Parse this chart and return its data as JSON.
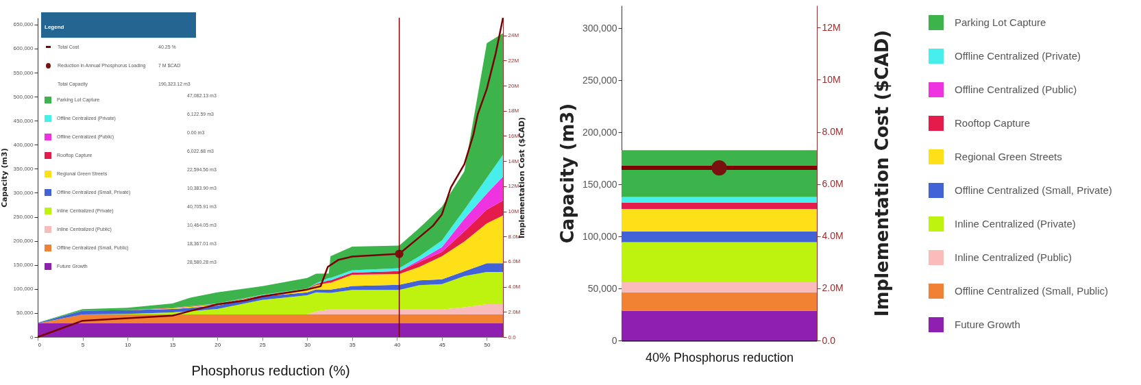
{
  "chart_data": [
    {
      "type": "area",
      "stacked": true,
      "legend": "top left",
      "legend_title": "Legend",
      "xlabel": "Phosphorus reduction (%)",
      "ylabel": "Capacity (m3)",
      "y2label": "Implementation Cost ($CAD)",
      "x": [
        0,
        5,
        10,
        15,
        17,
        20,
        25,
        30,
        31,
        32.4,
        32.6,
        35,
        40.25,
        42.5,
        45,
        47.5,
        50,
        51.8
      ],
      "xlim": [
        0,
        51.8
      ],
      "xticks": [
        0,
        5,
        10,
        15,
        20,
        25,
        30,
        35,
        40,
        45,
        50
      ],
      "ylim": [
        0,
        664000
      ],
      "yticks": [
        {
          "value": 0,
          "label": "0"
        },
        {
          "value": 50000,
          "label": "50,000"
        },
        {
          "value": 100000,
          "label": "100,000"
        },
        {
          "value": 150000,
          "label": "150,000"
        },
        {
          "value": 200000,
          "label": "200,000"
        },
        {
          "value": 250000,
          "label": "250,000"
        },
        {
          "value": 300000,
          "label": "300,000"
        },
        {
          "value": 350000,
          "label": "350,000"
        },
        {
          "value": 400000,
          "label": "400,000"
        },
        {
          "value": 450000,
          "label": "450,000"
        },
        {
          "value": 500000,
          "label": "500,000"
        },
        {
          "value": 550000,
          "label": "550,000"
        },
        {
          "value": 600000,
          "label": "600,000"
        },
        {
          "value": 650000,
          "label": "650,000"
        }
      ],
      "y2lim": [
        0,
        25400000
      ],
      "y2ticks": [
        {
          "value": 0,
          "label": "0.0"
        },
        {
          "value": 2000000,
          "label": "2.0M"
        },
        {
          "value": 4000000,
          "label": "4.0M"
        },
        {
          "value": 6000000,
          "label": "6.0M"
        },
        {
          "value": 8000000,
          "label": "8.0M"
        },
        {
          "value": 10000000,
          "label": "10M"
        },
        {
          "value": 12000000,
          "label": "12M"
        },
        {
          "value": 14000000,
          "label": "14M"
        },
        {
          "value": 16000000,
          "label": "16M"
        },
        {
          "value": 18000000,
          "label": "18M"
        },
        {
          "value": 20000000,
          "label": "20M"
        },
        {
          "value": 22000000,
          "label": "22M"
        },
        {
          "value": 24000000,
          "label": "24M"
        }
      ],
      "series": [
        {
          "name": "Future Growth",
          "color": "#8e1fb0",
          "values": [
            28580,
            28580,
            28580,
            28580,
            28580,
            28580,
            28580,
            28580,
            28580,
            28580,
            28580,
            28580,
            28580,
            28580,
            28580,
            28580,
            28580,
            28580
          ]
        },
        {
          "name": "Offline Centralized (Small, Public)",
          "color": "#f18233",
          "values": [
            0,
            18370,
            18370,
            18370,
            18370,
            18370,
            18370,
            18370,
            18370,
            18370,
            18370,
            18370,
            18370,
            18370,
            18370,
            18370,
            18370,
            18370
          ]
        },
        {
          "name": "Inline Centralized (Public)",
          "color": "#f9bcbb",
          "values": [
            0,
            0,
            0,
            0,
            0,
            0,
            0,
            0,
            6000,
            10460,
            10460,
            10460,
            10460,
            10460,
            10460,
            15000,
            21500,
            21500
          ]
        },
        {
          "name": "Inline Centralized (Private)",
          "color": "#bef30f",
          "values": [
            0,
            0,
            1000,
            4400,
            6800,
            11500,
            30500,
            40000,
            40000,
            34600,
            34600,
            40600,
            40710,
            50600,
            52600,
            65000,
            67000,
            67000
          ]
        },
        {
          "name": "Offline Centralized (Small, Private)",
          "color": "#4263d7",
          "values": [
            1000,
            8000,
            8000,
            7000,
            7000,
            7000,
            7000,
            6000,
            6000,
            6700,
            6700,
            8000,
            10380,
            10000,
            10000,
            10000,
            18000,
            18000
          ]
        },
        {
          "name": "Regional Green Streets",
          "color": "#fde018",
          "values": [
            0,
            0,
            0,
            1400,
            2200,
            2500,
            1500,
            5700,
            9000,
            14300,
            14300,
            23500,
            22590,
            28000,
            48000,
            62000,
            83000,
            99500
          ]
        },
        {
          "name": "Rooftop Capture",
          "color": "#e51b4b",
          "values": [
            0,
            0,
            0,
            1000,
            1000,
            1000,
            1000,
            1300,
            2000,
            5000,
            5000,
            4500,
            6020,
            10000,
            9000,
            21000,
            28500,
            31000
          ]
        },
        {
          "name": "Offline Centralized (Public)",
          "color": "#f033e0",
          "values": [
            0,
            0,
            0,
            0,
            0,
            0,
            0,
            0,
            0,
            0,
            0,
            0,
            0,
            4000,
            10000,
            26000,
            33500,
            50000
          ]
        },
        {
          "name": "Offline Centralized (Private)",
          "color": "#46eeec",
          "values": [
            0,
            0,
            0,
            200,
            600,
            1000,
            1000,
            1000,
            2000,
            5000,
            5000,
            5000,
            6120,
            8000,
            14000,
            19000,
            33000,
            45000
          ]
        },
        {
          "name": "Parking Lot Capture",
          "color": "#3cb44b",
          "values": [
            500,
            3000,
            5000,
            9000,
            17400,
            23000,
            18000,
            22000,
            20000,
            9000,
            45000,
            49000,
            47080,
            59000,
            70000,
            80000,
            280000,
            253000
          ]
        },
        {
          "name": "Total Cost",
          "type": "line",
          "axis": "y2",
          "color": "#7a0000",
          "x": [
            0,
            5,
            10,
            15,
            17,
            20,
            23,
            25,
            30,
            31.5,
            32.3,
            33.5,
            35,
            40.25,
            42.5,
            44,
            45,
            46,
            47.5,
            48.5,
            49,
            50,
            51,
            51.8
          ],
          "values": [
            0,
            1300000,
            1500000,
            1700000,
            2080000,
            2600000,
            2900000,
            3230000,
            3780000,
            4050000,
            5590000,
            6150000,
            6400000,
            6620000,
            7950000,
            8850000,
            9760000,
            11900000,
            13760000,
            16100000,
            17750000,
            19750000,
            22600000,
            25400000
          ]
        },
        {
          "name": "Reduction in Annual Phosphorus Loading",
          "type": "scatter",
          "axis": "y2",
          "color": "#7a1010",
          "x": [
            40.25
          ],
          "values": [
            6620000
          ]
        }
      ],
      "ref_lines": [
        {
          "axis": "x",
          "value": 40.25,
          "color": "#7a0000"
        }
      ],
      "annotations": [
        "40.25 %",
        "7 M $CAD",
        "Total Capacity",
        "190,323.12 m3",
        "47,082.13 m3",
        "6,122.59 m3",
        "0.00 m3",
        "6,022.68 m3",
        "22,594.56 m3",
        "10,383.90 m3",
        "40,705.91 m3",
        "10,464.05 m3",
        "18,367.01 m3",
        "28,580.28 m3"
      ]
    },
    {
      "type": "bar",
      "stacked": true,
      "legend": "right",
      "categories": [
        null
      ],
      "xlabel": "40% Phosphorus reduction",
      "ylabel": "Capacity (m3)",
      "y2label": "Implementation Cost ($CAD)",
      "ylim": [
        0,
        322000
      ],
      "yticks": [
        {
          "value": 0,
          "label": "0"
        },
        {
          "value": 50000,
          "label": "50,000"
        },
        {
          "value": 100000,
          "label": "100,000"
        },
        {
          "value": 150000,
          "label": "150,000"
        },
        {
          "value": 200000,
          "label": "200,000"
        },
        {
          "value": 250000,
          "label": "250,000"
        },
        {
          "value": 300000,
          "label": "300,000"
        }
      ],
      "y2lim": [
        0,
        12850000
      ],
      "y2ticks": [
        {
          "value": 0,
          "label": "0.0"
        },
        {
          "value": 2000000,
          "label": "2.0M"
        },
        {
          "value": 4000000,
          "label": "4.0M"
        },
        {
          "value": 6000000,
          "label": "6.0M"
        },
        {
          "value": 8000000,
          "label": "8.0M"
        },
        {
          "value": 10000000,
          "label": "10M"
        },
        {
          "value": 12000000,
          "label": "12M"
        }
      ],
      "series": [
        {
          "name": "Future Growth",
          "color": "#8e1fb0",
          "values": [
            28600
          ]
        },
        {
          "name": "Offline Centralized (Small, Public)",
          "color": "#f18233",
          "values": [
            17600
          ]
        },
        {
          "name": "Inline Centralized (Public)",
          "color": "#f9bcbb",
          "values": [
            9800
          ]
        },
        {
          "name": "Inline Centralized (Private)",
          "color": "#bef30f",
          "values": [
            38500
          ]
        },
        {
          "name": "Offline Centralized (Small, Private)",
          "color": "#4263d7",
          "values": [
            10300
          ]
        },
        {
          "name": "Regional Green Streets",
          "color": "#fde018",
          "values": [
            21600
          ]
        },
        {
          "name": "Rooftop Capture",
          "color": "#e51b4b",
          "values": [
            6100
          ]
        },
        {
          "name": "Offline Centralized (Public)",
          "color": "#f033e0",
          "values": [
            0
          ]
        },
        {
          "name": "Offline Centralized (Private)",
          "color": "#46eeec",
          "values": [
            5500
          ]
        },
        {
          "name": "Parking Lot Capture",
          "color": "#3cb44b",
          "values": [
            44900
          ]
        },
        {
          "type": "scatter",
          "axis": "y2",
          "color": "#7a1010",
          "values": [
            6620000
          ]
        }
      ],
      "ref_lines": [
        {
          "axis": "y2",
          "value": 6620000,
          "color": "#800000"
        }
      ]
    }
  ]
}
